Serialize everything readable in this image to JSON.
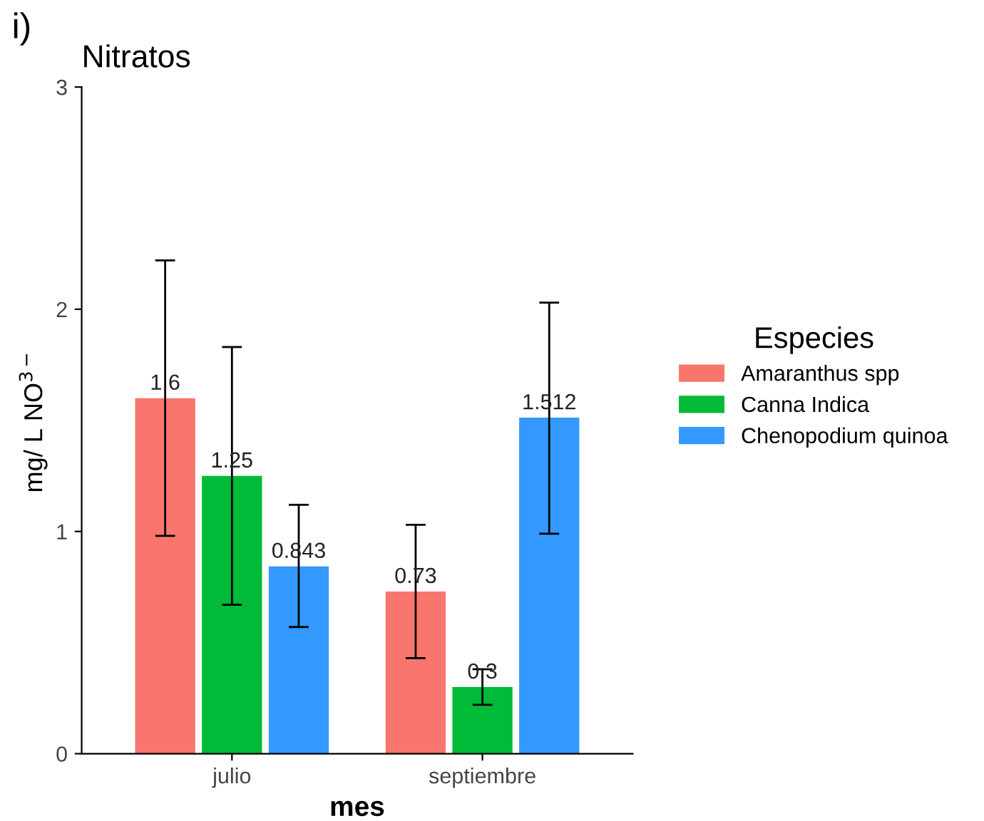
{
  "chart_data": {
    "type": "bar",
    "title": "Nitratos",
    "annotations": [
      "i)"
    ],
    "xlabel": "mes",
    "ylabel": "mg/ L NO$^{3−}$",
    "legend_title": "Especies",
    "categories": [
      "julio",
      "septiembre"
    ],
    "series": [
      {
        "name": "Amaranthus spp",
        "color": "#f8766d",
        "values": [
          1.6,
          0.73
        ],
        "errors": [
          [
            0.98,
            2.22
          ],
          [
            0.43,
            1.03
          ]
        ]
      },
      {
        "name": "Canna Indica",
        "color": "#00ba38",
        "values": [
          1.25,
          0.3
        ],
        "errors": [
          [
            0.67,
            1.83
          ],
          [
            0.22,
            0.38
          ]
        ]
      },
      {
        "name": "Chenopodium quinoa",
        "color": "#3399ff",
        "values": [
          0.843,
          1.512
        ],
        "errors": [
          [
            0.57,
            1.12
          ],
          [
            0.99,
            2.03
          ]
        ]
      }
    ],
    "ylim": [
      0,
      3
    ],
    "yticks": [
      0,
      1,
      2,
      3
    ],
    "grid": false,
    "legend": "right",
    "data_labels": true
  }
}
